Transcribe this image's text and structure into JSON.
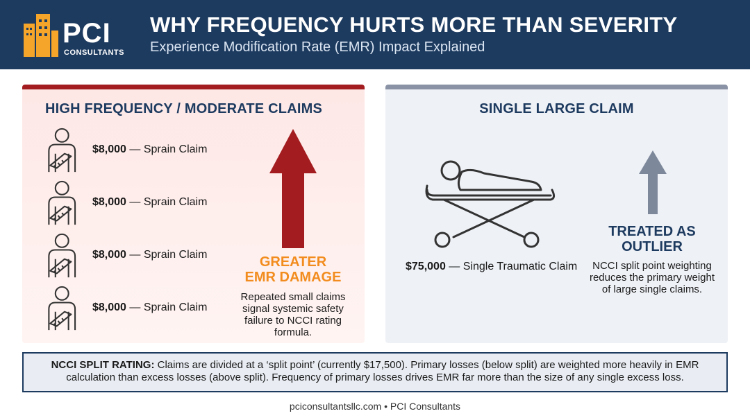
{
  "header": {
    "logo_main": "PCI",
    "logo_sub": "CONSULTANTS",
    "title": "WHY FREQUENCY HURTS MORE THAN SEVERITY",
    "subtitle": "Experience Modification Rate (EMR) Impact Explained"
  },
  "left_panel": {
    "title": "HIGH FREQUENCY / MODERATE CLAIMS",
    "claims": [
      {
        "amount": "$8,000",
        "label": "— Sprain Claim"
      },
      {
        "amount": "$8,000",
        "label": "— Sprain Claim"
      },
      {
        "amount": "$8,000",
        "label": "— Sprain Claim"
      },
      {
        "amount": "$8,000",
        "label": "— Sprain Claim"
      }
    ],
    "callout_line1": "GREATER",
    "callout_line2": "EMR DAMAGE",
    "note": "Repeated small claims signal systemic safety failure to NCCI rating formula."
  },
  "right_panel": {
    "title": "SINGLE LARGE CLAIM",
    "claim": {
      "amount": "$75,000",
      "label": "— Single Traumatic Claim"
    },
    "callout_line1": "TREATED AS",
    "callout_line2": "OUTLIER",
    "note": "NCCI split point weighting reduces the primary weight of large single claims."
  },
  "footnote": {
    "lead": "NCCI SPLIT RATING:",
    "text": "Claims are divided at a ‘split point’ (currently $17,500). Primary losses (below split) are weighted more heavily in EMR calculation than excess losses (above split). Frequency of primary losses drives EMR far more than the size of any single excess loss."
  },
  "footer": {
    "site": "pciconsultantsllc.com",
    "separator": "•",
    "company": "PCI Consultants"
  }
}
